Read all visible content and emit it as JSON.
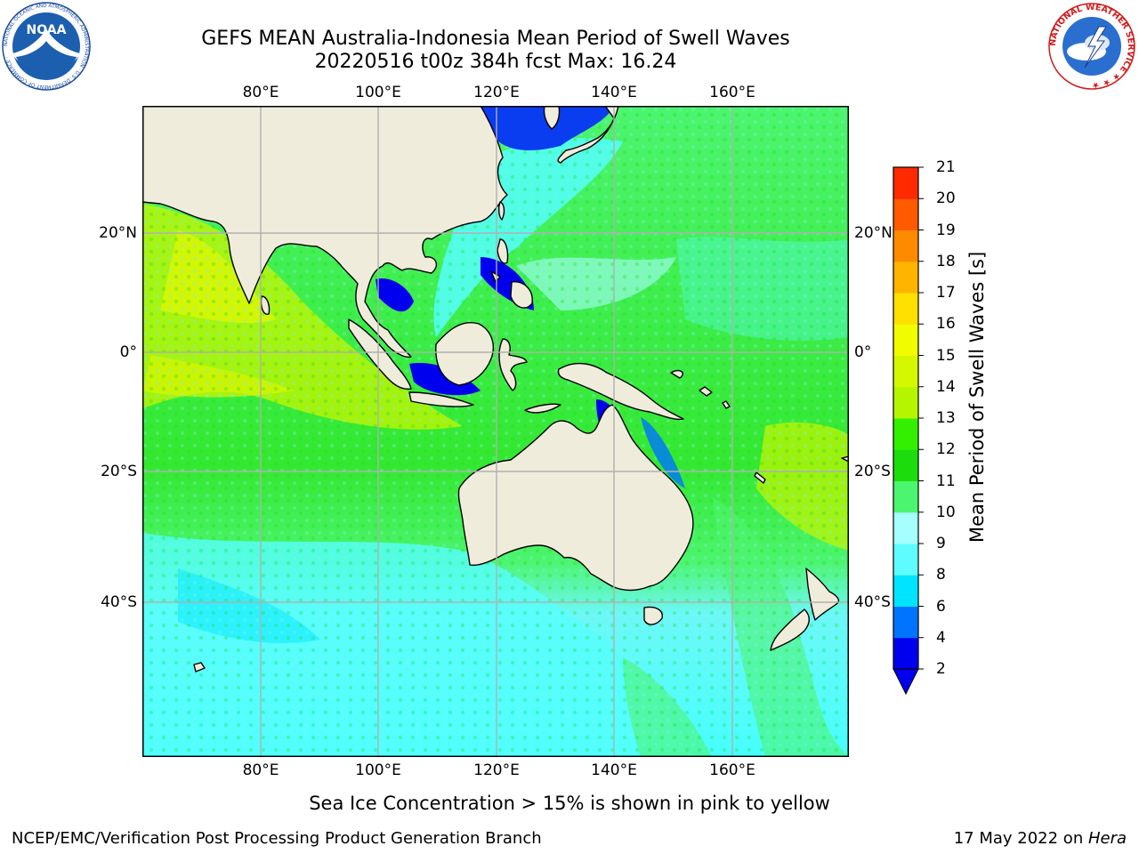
{
  "header": {
    "title_line1": "GEFS MEAN Australia-Indonesia Mean Period of Swell Waves",
    "title_line2": "20220516 t00z 384h fcst   Max: 16.24"
  },
  "logos": {
    "noaa_text": "NOAA",
    "noaa_ring": "NATIONAL OCEANIC AND ATMOSPHERIC ADMINISTRATION · U.S. DEPARTMENT OF COMMERCE ·",
    "nws_ring": "NATIONAL WEATHER SERVICE ★ ★ ★"
  },
  "map": {
    "lon_ticks": [
      "80°E",
      "100°E",
      "120°E",
      "140°E",
      "160°E"
    ],
    "lat_ticks": [
      "20°N",
      "0°",
      "20°S",
      "40°S"
    ],
    "colors": {
      "land": "#efecdc",
      "ocean_green": "#4cf56f",
      "ocean_cyan": "#55ffff",
      "grid": "#b0b0b0"
    }
  },
  "colorbar": {
    "label": "Mean Period of Swell Waves [s]",
    "levels": [
      "2",
      "4",
      "6",
      "8",
      "9",
      "10",
      "11",
      "12",
      "13",
      "14",
      "15",
      "16",
      "17",
      "18",
      "19",
      "20",
      "21"
    ],
    "colors": [
      "#0000ee",
      "#0073ff",
      "#00e5ff",
      "#5ffcff",
      "#a6ffff",
      "#4cf56f",
      "#1ddc0c",
      "#32f000",
      "#b5f500",
      "#d4f800",
      "#f2fc00",
      "#ffe000",
      "#ffb400",
      "#ff8a00",
      "#ff5a00",
      "#ff2a00",
      "#ff0000"
    ],
    "extend_color": "#0000ee"
  },
  "footer": {
    "note": "Sea Ice Concentration > 15% is shown in pink to yellow",
    "left": "NCEP/EMC/Verification Post Processing Product Generation Branch",
    "right_date": "17 May 2022 on ",
    "right_host": "Hera"
  }
}
